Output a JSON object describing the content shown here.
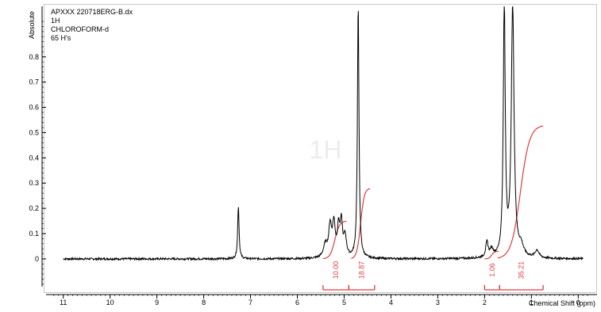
{
  "header": {
    "filename": "APXXX 220718ERG-B.dx",
    "nucleus": "1H",
    "solvent": "CHLOROFORM-d",
    "protons": "65 H's"
  },
  "watermark": "1H",
  "colors": {
    "spectrum": "#000000",
    "integral": "#e03c3c",
    "axis": "#000000"
  },
  "chart_data": {
    "type": "line",
    "xlabel": "Chemical Shift (ppm)",
    "ylabel": "Absolute",
    "xlim": [
      11.3,
      -0.3
    ],
    "ylim": [
      -0.11,
      1.0
    ],
    "x_reversed": true,
    "x_ticks": [
      11,
      10,
      9,
      8,
      7,
      6,
      5,
      4,
      3,
      2,
      1,
      0
    ],
    "y_ticks": [
      0,
      0.1,
      0.2,
      0.3,
      0.4,
      0.5,
      0.6,
      0.7,
      0.8
    ],
    "baseline": {
      "x_start": 11.0,
      "x_end": -0.1,
      "noise": 0.004
    },
    "peaks": [
      {
        "x": 7.26,
        "height": 0.21,
        "width": 0.018
      },
      {
        "x": 5.4,
        "height": 0.05,
        "width": 0.05
      },
      {
        "x": 5.3,
        "height": 0.12,
        "width": 0.035
      },
      {
        "x": 5.22,
        "height": 0.13,
        "width": 0.035
      },
      {
        "x": 5.12,
        "height": 0.11,
        "width": 0.03
      },
      {
        "x": 5.06,
        "height": 0.13,
        "width": 0.03
      },
      {
        "x": 4.98,
        "height": 0.08,
        "width": 0.035
      },
      {
        "x": 4.7,
        "height": 1.0,
        "width": 0.02
      },
      {
        "x": 1.95,
        "height": 0.06,
        "width": 0.03
      },
      {
        "x": 1.85,
        "height": 0.03,
        "width": 0.04
      },
      {
        "x": 1.58,
        "height": 1.0,
        "width": 0.025
      },
      {
        "x": 1.4,
        "height": 1.0,
        "width": 0.035
      },
      {
        "x": 1.22,
        "height": 0.04,
        "width": 0.06
      },
      {
        "x": 0.88,
        "height": 0.03,
        "width": 0.05
      }
    ],
    "integral_curves": [
      {
        "from": 5.45,
        "to": 4.95,
        "y_start": 0.0,
        "y_end": 0.15
      },
      {
        "from": 4.85,
        "to": 4.45,
        "y_start": 0.0,
        "y_end": 0.28
      },
      {
        "from": 2.0,
        "to": 1.7,
        "y_start": 0.0,
        "y_end": 0.03
      },
      {
        "from": 1.72,
        "to": 0.75,
        "y_start": 0.0,
        "y_end": 0.53
      }
    ],
    "integrals": [
      {
        "label": "10.00",
        "from": 5.45,
        "to": 4.9
      },
      {
        "label": "18.87",
        "from": 4.9,
        "to": 4.35
      },
      {
        "label": "1.06",
        "from": 2.0,
        "to": 1.68
      },
      {
        "label": "35.21",
        "from": 1.68,
        "to": 0.75
      }
    ]
  }
}
